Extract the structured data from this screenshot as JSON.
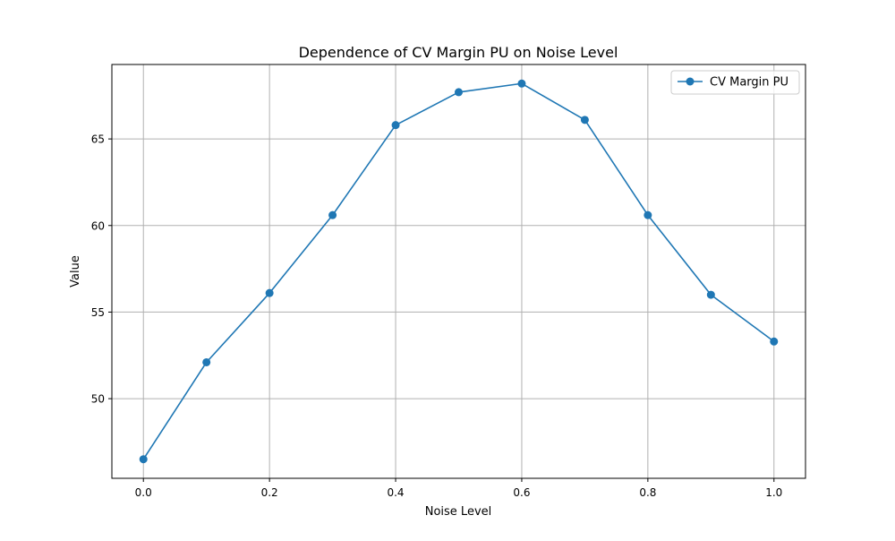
{
  "chart_data": {
    "type": "line",
    "title": "Dependence of CV Margin PU on Noise Level",
    "xlabel": "Noise Level",
    "ylabel": "Value",
    "x": [
      0.0,
      0.1,
      0.2,
      0.3,
      0.4,
      0.5,
      0.6,
      0.7,
      0.8,
      0.9,
      1.0
    ],
    "series": [
      {
        "name": "CV Margin PU",
        "values": [
          46.5,
          52.1,
          56.1,
          60.6,
          65.8,
          67.7,
          68.2,
          66.1,
          60.6,
          56.0,
          53.3
        ],
        "color": "#1f77b4",
        "marker": "circle"
      }
    ],
    "xlim": [
      -0.05,
      1.05
    ],
    "ylim": [
      45.4,
      69.3
    ],
    "xticks": [
      0.0,
      0.2,
      0.4,
      0.6,
      0.8,
      1.0
    ],
    "xtick_labels": [
      "0.0",
      "0.2",
      "0.4",
      "0.6",
      "0.8",
      "1.0"
    ],
    "yticks": [
      50,
      55,
      60,
      65
    ],
    "ytick_labels": [
      "50",
      "55",
      "60",
      "65"
    ],
    "grid": true,
    "legend_position": "top-right"
  }
}
